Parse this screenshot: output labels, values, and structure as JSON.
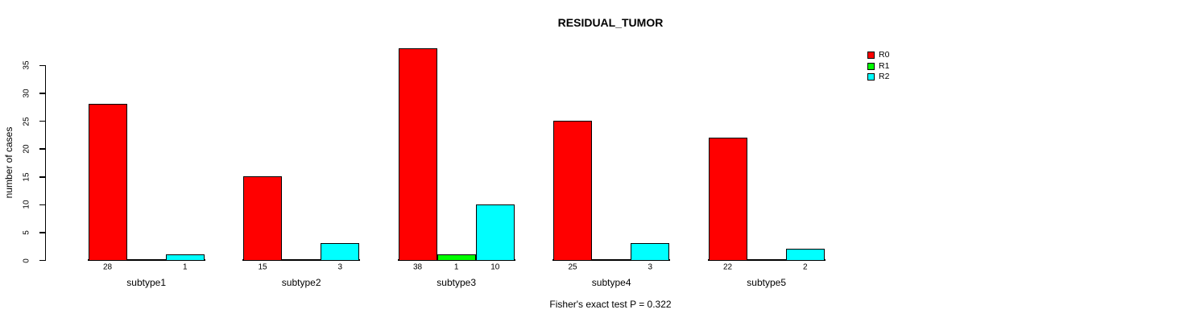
{
  "chart_data": {
    "type": "bar",
    "title": "RESIDUAL_TUMOR",
    "xlabel": "",
    "ylabel": "number of cases",
    "categories": [
      "subtype1",
      "subtype2",
      "subtype3",
      "subtype4",
      "subtype5"
    ],
    "series": [
      {
        "name": "R0",
        "color": "#ff0000",
        "values": [
          28,
          15,
          38,
          25,
          22
        ]
      },
      {
        "name": "R1",
        "color": "#00ff00",
        "values": [
          0,
          0,
          1,
          0,
          0
        ]
      },
      {
        "name": "R2",
        "color": "#00ffff",
        "values": [
          1,
          3,
          10,
          3,
          2
        ]
      }
    ],
    "yticks": [
      0,
      5,
      10,
      15,
      20,
      25,
      30,
      35
    ],
    "ylim": [
      0,
      38
    ],
    "grid": false,
    "legend_position": "top-right",
    "bar_value_labels": "shown under each nonzero bar",
    "annotation": "Fisher's exact test P = 0.322"
  }
}
